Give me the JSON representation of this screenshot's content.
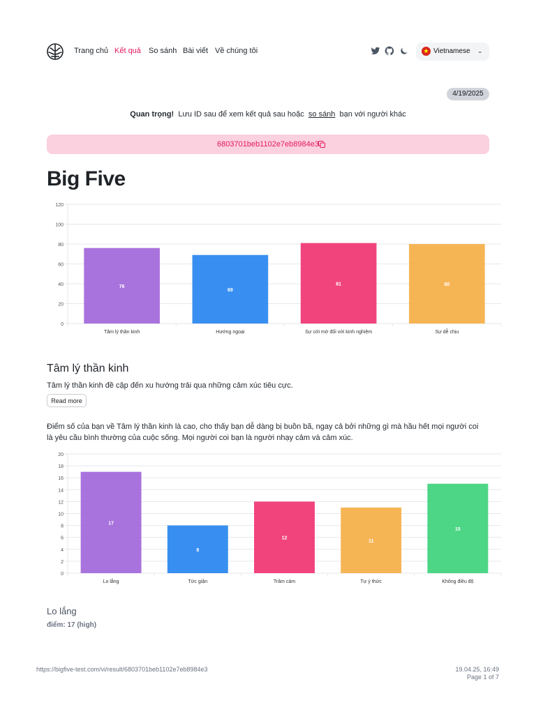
{
  "nav": {
    "links": [
      "Trang chủ",
      "Kết quả",
      "So sánh",
      "Bài viết",
      "Về chúng tôi"
    ],
    "active_index": 1,
    "icons": [
      "twitter-icon",
      "github-icon",
      "moon-icon"
    ],
    "language": "Vietnamese",
    "accent": "#e5195e"
  },
  "date_badge": "4/19/2025",
  "notice": {
    "strong": "Quan trọng!",
    "before": "Lưu ID sau để xem kết quả sau hoặc",
    "link": "so sánh",
    "after": "bạn với người khác"
  },
  "result_id": "6803701beb1102e7eb8984e3",
  "page_title": "Big Five",
  "chart_data": [
    {
      "type": "bar",
      "categories": [
        "Tâm lý thần kinh",
        "Hướng ngoại",
        "Sự cởi mở đối với kinh nghiệm",
        "Sự dễ chịu"
      ],
      "values": [
        76,
        69,
        81,
        80
      ],
      "colors": [
        "#a064d9",
        "#2383f0",
        "#f0306f",
        "#f5ad42"
      ],
      "ylim": [
        0,
        120
      ],
      "yticks": [
        "0",
        "20",
        "40",
        "60",
        "80",
        "100",
        "120"
      ],
      "grid": true
    },
    {
      "type": "bar",
      "categories": [
        "Lo lắng",
        "Tức giận",
        "Trầm cảm",
        "Tự ý thức",
        "Không điều độ"
      ],
      "values": [
        17,
        8,
        12,
        11,
        15
      ],
      "colors": [
        "#a064d9",
        "#2383f0",
        "#f0306f",
        "#f5ad42",
        "#38d178"
      ],
      "ylim": [
        0,
        20
      ],
      "yticks": [
        "0",
        "2",
        "4",
        "6",
        "8",
        "10",
        "12",
        "14",
        "16",
        "18",
        "20"
      ],
      "grid": true
    }
  ],
  "section": {
    "title": "Tâm lý thần kinh",
    "description": "Tâm lý thần kinh đề cập đến xu hướng trải qua những cảm xúc tiêu cực.",
    "read_more": "Read more",
    "paragraph": "Điểm số của bạn về Tâm lý thần kinh là cao, cho thấy bạn dễ dàng bị buồn bã, ngay cả bởi những gì mà hầu hết mọi người coi là yêu cầu bình thường của cuộc sống. Mọi người coi bạn là người nhạy cảm và cảm xúc."
  },
  "subsection": {
    "title": "Lo lắng",
    "score": "điểm: 17 (high)"
  },
  "footer": {
    "url": "https://bigfive-test.com/vi/result/6803701beb1102e7eb8984e3",
    "datetime": "19.04.25, 16:49",
    "page": "Page 1 of 7"
  }
}
